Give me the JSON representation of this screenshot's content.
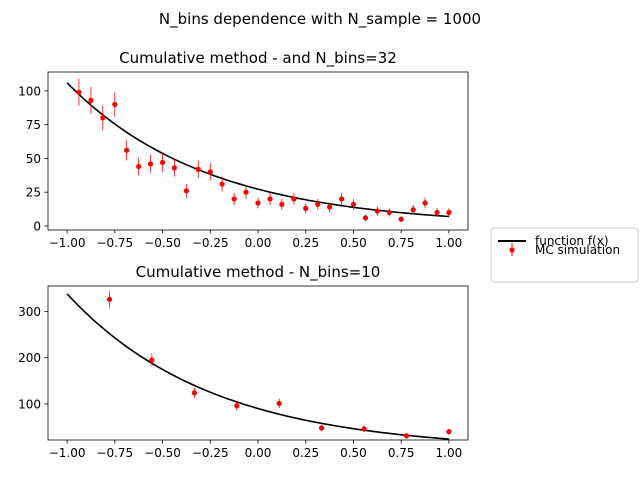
{
  "suptitle": "N_bins dependence with N_sample = 1000",
  "legend": {
    "entries": [
      {
        "label": "function f(x)",
        "kind": "line",
        "color": "#000000"
      },
      {
        "label": "MC simulation",
        "kind": "errorbar",
        "color": "#ff0000"
      }
    ]
  },
  "chart_data": [
    {
      "type": "scatter",
      "title": "Cumulative method -  and N_bins=32",
      "xlim": [
        -1.1,
        1.1
      ],
      "ylim": [
        -3,
        114
      ],
      "xticks": [
        -1.0,
        -0.75,
        -0.5,
        -0.25,
        0.0,
        0.25,
        0.5,
        0.75,
        1.0
      ],
      "xtick_labels": [
        "−1.00",
        "−0.75",
        "−0.50",
        "−0.25",
        "0.00",
        "0.25",
        "0.50",
        "0.75",
        "1.00"
      ],
      "yticks": [
        0,
        25,
        50,
        75,
        100
      ],
      "ytick_labels": [
        "0",
        "25",
        "50",
        "75",
        "100"
      ],
      "function_curve": {
        "name": "function f(x)",
        "x_start": -1.0,
        "x_end": 1.0,
        "y_start": 106,
        "y_end": 7
      },
      "series": [
        {
          "name": "MC simulation",
          "x": [
            -0.938,
            -0.875,
            -0.813,
            -0.75,
            -0.688,
            -0.625,
            -0.563,
            -0.5,
            -0.438,
            -0.375,
            -0.313,
            -0.25,
            -0.188,
            -0.125,
            -0.063,
            0.0,
            0.063,
            0.125,
            0.188,
            0.25,
            0.313,
            0.375,
            0.438,
            0.5,
            0.563,
            0.625,
            0.688,
            0.75,
            0.813,
            0.875,
            0.938,
            1.0
          ],
          "y": [
            99,
            93,
            80,
            90,
            56,
            44,
            46,
            47,
            43,
            26,
            42,
            40,
            31,
            20,
            25,
            17,
            20,
            16,
            20,
            13,
            16,
            14,
            20,
            16,
            6,
            11,
            10,
            5,
            12,
            17,
            10,
            10
          ],
          "yerr": [
            10,
            10,
            9,
            9,
            7.5,
            6.5,
            6.5,
            7,
            6.5,
            5,
            6.5,
            6.5,
            5.5,
            4.5,
            5,
            4,
            4.5,
            4,
            4.5,
            3.5,
            4,
            3.5,
            4.5,
            4,
            2.5,
            3.5,
            3,
            2,
            3.5,
            4,
            3,
            3
          ]
        }
      ]
    },
    {
      "type": "scatter",
      "title": "Cumulative method - N_bins=10",
      "xlim": [
        -1.1,
        1.1
      ],
      "ylim": [
        22,
        355
      ],
      "xticks": [
        -1.0,
        -0.75,
        -0.5,
        -0.25,
        0.0,
        0.25,
        0.5,
        0.75,
        1.0
      ],
      "xtick_labels": [
        "−1.00",
        "−0.75",
        "−0.50",
        "−0.25",
        "0.00",
        "0.25",
        "0.50",
        "0.75",
        "1.00"
      ],
      "yticks": [
        100,
        200,
        300
      ],
      "ytick_labels": [
        "100",
        "200",
        "300"
      ],
      "function_curve": {
        "name": "function f(x)",
        "x_start": -1.0,
        "x_end": 1.0,
        "y_start": 338,
        "y_end": 24
      },
      "series": [
        {
          "name": "MC simulation",
          "x": [
            -0.778,
            -0.556,
            -0.333,
            -0.111,
            0.111,
            0.333,
            0.556,
            0.778,
            1.0
          ],
          "y": [
            326,
            195,
            124,
            96,
            101,
            48,
            46,
            31,
            40
          ],
          "yerr": [
            18,
            14,
            11,
            10,
            10,
            7,
            7,
            5.5,
            6.5
          ]
        }
      ]
    }
  ]
}
